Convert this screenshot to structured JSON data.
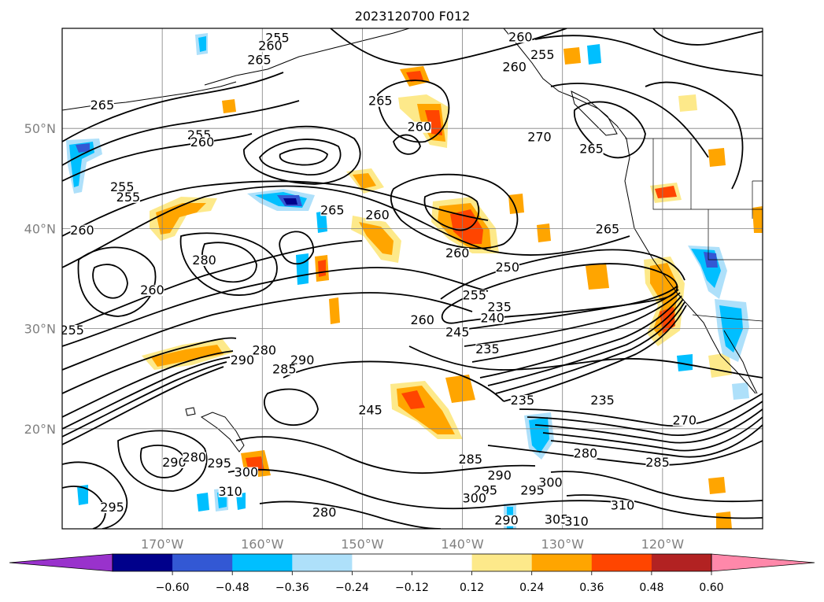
{
  "title": "2023120700 F012",
  "map": {
    "lon_range": [
      -180,
      -110
    ],
    "lat_range": [
      10,
      60
    ],
    "gridline_color": "#808080"
  },
  "axes": {
    "lat_ticks": [
      {
        "value": 50,
        "label": "50°N"
      },
      {
        "value": 40,
        "label": "40°N"
      },
      {
        "value": 30,
        "label": "30°N"
      },
      {
        "value": 20,
        "label": "20°N"
      }
    ],
    "lon_ticks": [
      {
        "value": -170,
        "label": "170°W"
      },
      {
        "value": -160,
        "label": "160°W"
      },
      {
        "value": -150,
        "label": "150°W"
      },
      {
        "value": -140,
        "label": "140°W"
      },
      {
        "value": -130,
        "label": "130°W"
      },
      {
        "value": -120,
        "label": "120°W"
      }
    ]
  },
  "colorbar": {
    "under_color": "#9932cc",
    "over_color": "#ff88aa",
    "segments": [
      "#00008b",
      "#3358d4",
      "#00bfff",
      "#aee0fa",
      "#ffffff",
      "#ffffff",
      "#fde98a",
      "#ffa500",
      "#ff4500",
      "#b22222"
    ],
    "tick_labels": [
      "−0.60",
      "−0.48",
      "−0.36",
      "−0.24",
      "−0.12",
      "0.12",
      "0.24",
      "0.36",
      "0.48",
      "0.60"
    ]
  },
  "contour_labels": [
    {
      "text": "255",
      "lon": -158.5,
      "lat": 58.7
    },
    {
      "text": "260",
      "lon": -159.2,
      "lat": 57.9
    },
    {
      "text": "265",
      "lon": -160.3,
      "lat": 56.5
    },
    {
      "text": "265",
      "lon": -176.0,
      "lat": 52.0
    },
    {
      "text": "260",
      "lon": -134.2,
      "lat": 58.8
    },
    {
      "text": "260",
      "lon": -134.8,
      "lat": 55.8
    },
    {
      "text": "255",
      "lon": -132.0,
      "lat": 57.0
    },
    {
      "text": "265",
      "lon": -148.2,
      "lat": 52.4
    },
    {
      "text": "260",
      "lon": -144.3,
      "lat": 49.8
    },
    {
      "text": "255",
      "lon": -166.3,
      "lat": 49.0
    },
    {
      "text": "260",
      "lon": -166.0,
      "lat": 48.3
    },
    {
      "text": "270",
      "lon": -132.3,
      "lat": 48.8
    },
    {
      "text": "265",
      "lon": -127.1,
      "lat": 47.6
    },
    {
      "text": "255",
      "lon": -174.0,
      "lat": 43.8
    },
    {
      "text": "255",
      "lon": -173.4,
      "lat": 42.8
    },
    {
      "text": "265",
      "lon": -153.0,
      "lat": 41.5
    },
    {
      "text": "260",
      "lon": -148.5,
      "lat": 41.0
    },
    {
      "text": "265",
      "lon": -125.5,
      "lat": 39.6
    },
    {
      "text": "260",
      "lon": -178.0,
      "lat": 39.5
    },
    {
      "text": "260",
      "lon": -140.5,
      "lat": 37.2
    },
    {
      "text": "280",
      "lon": -165.8,
      "lat": 36.5
    },
    {
      "text": "250",
      "lon": -135.5,
      "lat": 35.8
    },
    {
      "text": "260",
      "lon": -171.0,
      "lat": 33.5
    },
    {
      "text": "255",
      "lon": -138.8,
      "lat": 33.0
    },
    {
      "text": "255",
      "lon": -179.0,
      "lat": 29.5
    },
    {
      "text": "235",
      "lon": -136.3,
      "lat": 31.8
    },
    {
      "text": "240",
      "lon": -137.0,
      "lat": 30.7
    },
    {
      "text": "260",
      "lon": -144.0,
      "lat": 30.5
    },
    {
      "text": "245",
      "lon": -140.5,
      "lat": 29.3
    },
    {
      "text": "235",
      "lon": -137.5,
      "lat": 27.6
    },
    {
      "text": "280",
      "lon": -159.8,
      "lat": 27.5
    },
    {
      "text": "290",
      "lon": -162.0,
      "lat": 26.5
    },
    {
      "text": "290",
      "lon": -156.0,
      "lat": 26.5
    },
    {
      "text": "285",
      "lon": -157.8,
      "lat": 25.6
    },
    {
      "text": "235",
      "lon": -134.0,
      "lat": 22.5
    },
    {
      "text": "235",
      "lon": -126.0,
      "lat": 22.5
    },
    {
      "text": "245",
      "lon": -149.2,
      "lat": 21.5
    },
    {
      "text": "270",
      "lon": -117.8,
      "lat": 20.5
    },
    {
      "text": "280",
      "lon": -127.7,
      "lat": 17.2
    },
    {
      "text": "285",
      "lon": -120.5,
      "lat": 16.3
    },
    {
      "text": "285",
      "lon": -139.2,
      "lat": 16.6
    },
    {
      "text": "290",
      "lon": -168.8,
      "lat": 16.3
    },
    {
      "text": "280",
      "lon": -166.8,
      "lat": 16.8
    },
    {
      "text": "295",
      "lon": -164.3,
      "lat": 16.2
    },
    {
      "text": "290",
      "lon": -136.3,
      "lat": 15.0
    },
    {
      "text": "300",
      "lon": -161.6,
      "lat": 15.3
    },
    {
      "text": "310",
      "lon": -163.2,
      "lat": 13.4
    },
    {
      "text": "295",
      "lon": -137.7,
      "lat": 13.5
    },
    {
      "text": "295",
      "lon": -133.0,
      "lat": 13.5
    },
    {
      "text": "300",
      "lon": -131.2,
      "lat": 14.3
    },
    {
      "text": "300",
      "lon": -138.8,
      "lat": 12.7
    },
    {
      "text": "310",
      "lon": -124.0,
      "lat": 12.0
    },
    {
      "text": "280",
      "lon": -153.8,
      "lat": 11.3
    },
    {
      "text": "295",
      "lon": -175.0,
      "lat": 11.8
    },
    {
      "text": "290",
      "lon": -135.6,
      "lat": 10.5
    },
    {
      "text": "305",
      "lon": -130.6,
      "lat": 10.6
    },
    {
      "text": "310",
      "lon": -128.6,
      "lat": 10.4
    }
  ]
}
